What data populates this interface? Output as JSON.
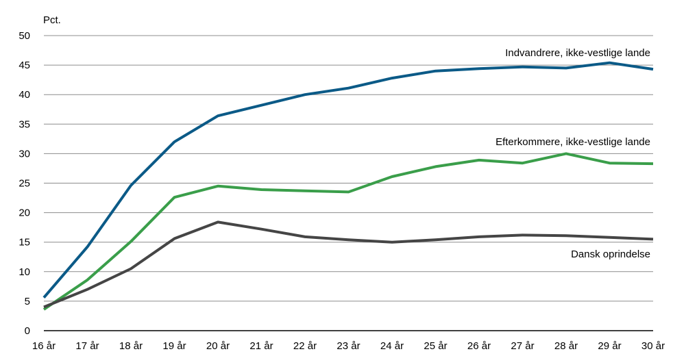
{
  "chart_data": {
    "type": "line",
    "ylabel": "Pct.",
    "ylim": [
      0,
      50
    ],
    "yticks": [
      0,
      5,
      10,
      15,
      20,
      25,
      30,
      35,
      40,
      45,
      50
    ],
    "grid": true,
    "categories": [
      "16 år",
      "17 år",
      "18 år",
      "19 år",
      "20 år",
      "21 år",
      "22 år",
      "23 år",
      "24 år",
      "25 år",
      "26 år",
      "27 år",
      "28 år",
      "29 år",
      "30 år"
    ],
    "series": [
      {
        "name": "Indvandrere, ikke-vestlige lande",
        "color": "#0b5a87",
        "values": [
          5.6,
          14.2,
          24.6,
          32.0,
          36.4,
          38.2,
          40.0,
          41.1,
          42.8,
          44.0,
          44.4,
          44.7,
          44.5,
          45.4,
          44.3
        ]
      },
      {
        "name": "Efterkommere, ikke-vestlige lande",
        "color": "#3a9e4a",
        "values": [
          3.6,
          8.6,
          15.1,
          22.6,
          24.5,
          23.9,
          23.7,
          23.5,
          26.1,
          27.8,
          28.9,
          28.4,
          30.0,
          28.4,
          28.3
        ]
      },
      {
        "name": "Dansk oprindelse",
        "color": "#454545",
        "values": [
          4.0,
          7.0,
          10.5,
          15.6,
          18.4,
          17.2,
          15.9,
          15.4,
          15.0,
          15.4,
          15.9,
          16.2,
          16.1,
          15.8,
          15.5
        ]
      }
    ]
  }
}
